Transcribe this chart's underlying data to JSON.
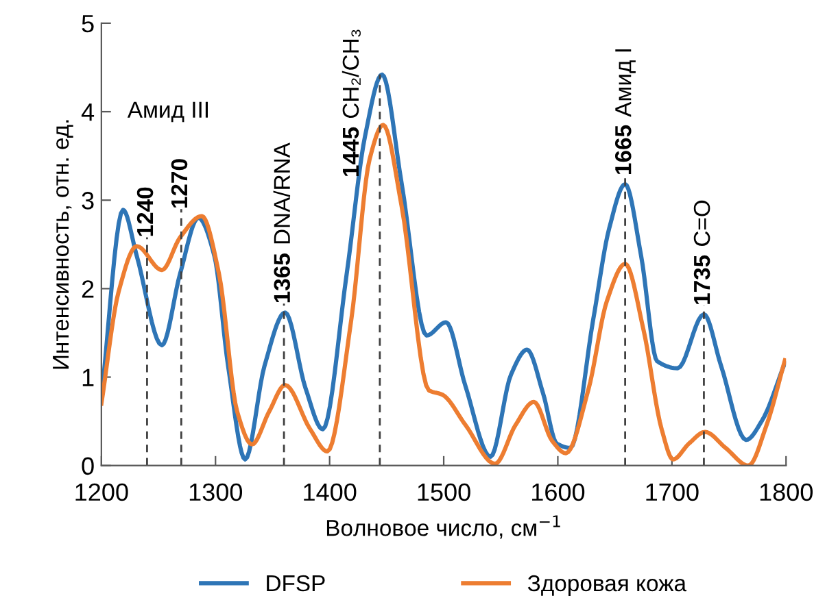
{
  "chart_data": {
    "type": "line",
    "xlabel": "Волновое число, см$^{−1}$",
    "ylabel": "Интенсивность, отн. ед.",
    "xlim": [
      1200,
      1800
    ],
    "xticks": [
      1200,
      1300,
      1400,
      1500,
      1600,
      1700,
      1800
    ],
    "ylim": [
      0,
      5
    ],
    "yticks": [
      0,
      1,
      2,
      3,
      4,
      5
    ],
    "grid": false,
    "legend": "bottom",
    "marker": "none",
    "line_style": "solid",
    "series": [
      {
        "name": "DFSP",
        "color": "#2e75b6",
        "x": [
          1200,
          1219,
          1231,
          1253,
          1269,
          1285,
          1299,
          1311,
          1326,
          1343,
          1361,
          1379,
          1394,
          1415,
          1431,
          1446,
          1463,
          1485,
          1502,
          1519,
          1541,
          1559,
          1573,
          1587,
          1599,
          1611,
          1631,
          1645,
          1659,
          1673,
          1687,
          1705,
          1728,
          1743,
          1765,
          1779,
          1799
        ],
        "values": [
          0.77,
          2.89,
          2.37,
          1.36,
          2.17,
          2.8,
          2.37,
          1.13,
          0.07,
          1.13,
          1.73,
          0.87,
          0.41,
          2.17,
          3.72,
          4.42,
          3.2,
          1.47,
          1.62,
          0.9,
          0.1,
          1.03,
          1.31,
          0.82,
          0.25,
          0.2,
          1.65,
          2.68,
          3.18,
          2.37,
          1.18,
          1.1,
          1.71,
          1.13,
          0.29,
          0.51,
          1.16
        ]
      },
      {
        "name": "Здоровая кожа",
        "color": "#ed7d31",
        "x": [
          1200,
          1215,
          1231,
          1253,
          1269,
          1288,
          1303,
          1319,
          1332,
          1347,
          1361,
          1383,
          1398,
          1419,
          1435,
          1447,
          1463,
          1487,
          1499,
          1519,
          1545,
          1563,
          1579,
          1595,
          1607,
          1627,
          1643,
          1659,
          1675,
          1691,
          1701,
          1715,
          1729,
          1747,
          1767,
          1783,
          1799
        ],
        "values": [
          0.7,
          1.96,
          2.48,
          2.21,
          2.58,
          2.82,
          2.17,
          0.61,
          0.24,
          0.61,
          0.91,
          0.41,
          0.16,
          1.65,
          3.46,
          3.85,
          2.94,
          0.85,
          0.8,
          0.46,
          0.02,
          0.46,
          0.72,
          0.28,
          0.14,
          0.87,
          1.86,
          2.28,
          1.54,
          0.41,
          0.07,
          0.25,
          0.38,
          0.2,
          0.0,
          0.46,
          1.19
        ]
      }
    ],
    "annotations": [
      "Амид III"
    ],
    "ref_lines": [
      {
        "axis": "x",
        "value": 1240,
        "label": "1240",
        "line_style": "dashed",
        "color": "#404040"
      },
      {
        "axis": "x",
        "value": 1270,
        "label": "1270",
        "line_style": "dashed",
        "color": "#404040"
      },
      {
        "axis": "x",
        "value": 1360,
        "label": "1365 DNA/RNA",
        "line_style": "dashed",
        "color": "#404040"
      },
      {
        "axis": "x",
        "value": 1444,
        "label": "1445 CH₂/CH₃",
        "line_style": "dashed",
        "color": "#404040"
      },
      {
        "axis": "x",
        "value": 1659,
        "label": "1665 Амид I",
        "line_style": "dashed",
        "color": "#404040"
      },
      {
        "axis": "x",
        "value": 1728,
        "label": "1735 C=O",
        "line_style": "dashed",
        "color": "#404040"
      }
    ]
  }
}
